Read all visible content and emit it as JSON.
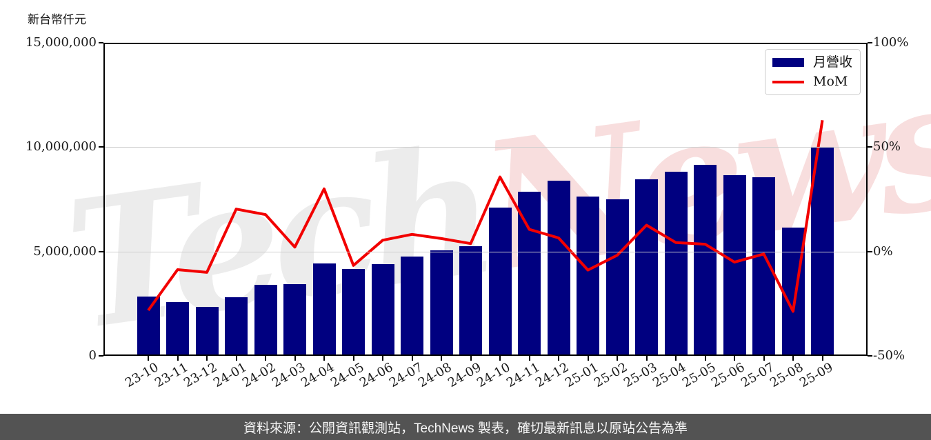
{
  "page": {
    "y_axis_title": "新台幣仟元",
    "watermark": {
      "part1": "Tech",
      "part2": "News"
    },
    "footer": {
      "text": "資料來源：公開資訊觀測站，TechNews 製表，確切最新訊息以原站公告為準",
      "bg": "#535353"
    }
  },
  "legend": {
    "bar_label": "月營收",
    "line_label": "MoM"
  },
  "colors": {
    "bar": "#000080",
    "line": "#f20000",
    "grid": "#cdcdcd",
    "spine": "#000000",
    "footer_bg": "#535353",
    "footer_text": "#f5f5f5",
    "watermark_gray": "#ececec",
    "watermark_pink": "#f8dede"
  },
  "chart_data": {
    "type": "bar",
    "title": "",
    "xlabel": "",
    "ylabel_left": "新台幣仟元",
    "ylabel_right": "%",
    "grid": "horizontal",
    "legend_position": "top-right",
    "categories": [
      "23-10",
      "23-11",
      "23-12",
      "24-01",
      "24-02",
      "24-03",
      "24-04",
      "24-05",
      "24-06",
      "24-07",
      "24-08",
      "24-09",
      "24-10",
      "24-11",
      "24-12",
      "25-01",
      "25-02",
      "25-03",
      "25-04",
      "25-05",
      "25-06",
      "25-07",
      "25-08",
      "25-09"
    ],
    "series": [
      {
        "name": "月營收",
        "type": "bar",
        "axis": "left",
        "unit": "新台幣仟元",
        "values": [
          2840000,
          2570000,
          2350000,
          2820000,
          3390000,
          3440000,
          4440000,
          4160000,
          4380000,
          4770000,
          5040000,
          5240000,
          7110000,
          7850000,
          8380000,
          7630000,
          7500000,
          8460000,
          8820000,
          9150000,
          8660000,
          8570000,
          6140000,
          10020000
        ]
      },
      {
        "name": "MoM",
        "type": "line",
        "axis": "right",
        "unit": "%",
        "values": [
          -28.2,
          -8.7,
          -10.0,
          20.3,
          17.7,
          2.1,
          30.0,
          -6.7,
          5.4,
          8.2,
          6.2,
          3.8,
          35.7,
          10.6,
          6.5,
          -8.9,
          -1.8,
          12.6,
          4.3,
          3.5,
          -5.1,
          -1.2,
          -28.7,
          62.9
        ]
      }
    ],
    "left_axis": {
      "range": [
        0,
        15000000
      ],
      "ticks": [
        {
          "value": 0,
          "label": "0"
        },
        {
          "value": 5000000,
          "label": "5,000,000"
        },
        {
          "value": 10000000,
          "label": "10,000,000"
        },
        {
          "value": 15000000,
          "label": "15,000,000"
        }
      ],
      "gridlines": [
        5000000,
        10000000
      ]
    },
    "right_axis": {
      "range": [
        -50,
        100
      ],
      "ticks": [
        {
          "value": -50,
          "label": "-50%"
        },
        {
          "value": 0,
          "label": "0%"
        },
        {
          "value": 50,
          "label": "50%"
        },
        {
          "value": 100,
          "label": "100%"
        }
      ]
    }
  }
}
